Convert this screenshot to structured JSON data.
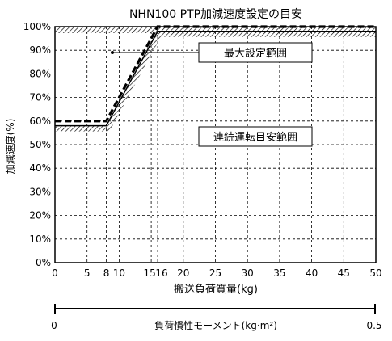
{
  "chart_data": {
    "type": "line",
    "title": "NHN100 PTP加減速度設定の目安",
    "xlabel": "搬送負荷質量(kg)",
    "ylabel": "加減速度(%)",
    "secondary_axis_label": "負荷慣性モーメント(kg·m²)",
    "secondary_axis_ticks": [
      "0",
      "0.5"
    ],
    "xlim": [
      0,
      50
    ],
    "ylim": [
      0,
      100
    ],
    "xticks": [
      0,
      5,
      8,
      10,
      15,
      16,
      20,
      25,
      30,
      35,
      40,
      45,
      50
    ],
    "xtick_labels": [
      "0",
      "5",
      "8",
      "10",
      "15",
      "16",
      "20",
      "25",
      "30",
      "35",
      "40",
      "45",
      "50"
    ],
    "yticks": [
      0,
      10,
      20,
      30,
      40,
      50,
      60,
      70,
      80,
      90,
      100
    ],
    "ytick_labels": [
      "0%",
      "10%",
      "20%",
      "30%",
      "40%",
      "50%",
      "60%",
      "70%",
      "80%",
      "90%",
      "100%"
    ],
    "grid": true,
    "series": [
      {
        "x": [
          0,
          8,
          16,
          50
        ],
        "y": [
          60,
          60,
          100,
          100
        ],
        "style": "dashed"
      }
    ],
    "regions": [
      {
        "label": "最大設定範囲",
        "boundary": {
          "x": [
            0,
            50
          ],
          "y": [
            100,
            100
          ]
        }
      },
      {
        "label": "連続運転目安範囲",
        "boundary": {
          "x": [
            0,
            8,
            16,
            50
          ],
          "y": [
            58,
            58,
            98,
            98
          ]
        }
      }
    ]
  },
  "colors": {
    "line": "#000000",
    "grid": "#000000",
    "background": "#ffffff"
  }
}
